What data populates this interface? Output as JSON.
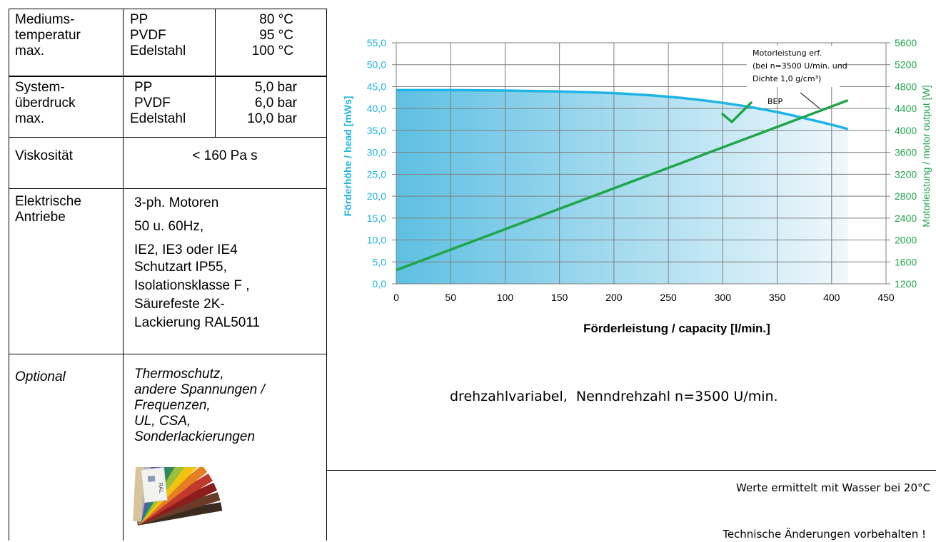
{
  "spec_table": {
    "medium_temp": {
      "label": "Mediums-\ntemperatur\nmax.",
      "rows": [
        {
          "material": "PP",
          "value": "80 °C"
        },
        {
          "material": "PVDF",
          "value": "95 °C"
        },
        {
          "material": "Edelstahl",
          "value": "100 °C"
        }
      ]
    },
    "system_pressure": {
      "label": "System-\nüberdruck\nmax.",
      "rows": [
        {
          "material": "PP",
          "value": "5,0 bar"
        },
        {
          "material": "PVDF",
          "value": "6,0 bar"
        },
        {
          "material": "Edelstahl",
          "value": "10,0 bar"
        }
      ]
    },
    "viscosity": {
      "label": "Viskosität",
      "value": "< 160 Pa s"
    },
    "drives": {
      "label": "Elektrische\nAntriebe",
      "lines": [
        "3-ph. Motoren",
        "50 u. 60Hz,",
        "IE2, IE3 oder IE4",
        "Schutzart IP55,",
        "Isolationsklasse F ,",
        "Säurefeste 2K-",
        "Lackierung RAL5011"
      ]
    },
    "optional": {
      "label": "Optional",
      "value": "Thermoschutz,\nandere Spannungen /\nFrequenzen,\nUL, CSA,\nSonderlackierungen"
    },
    "ral_fan_label": "RAL"
  },
  "chart_data": {
    "type": "line",
    "xlabel": "Förderleistung / capacity  [l/min.]",
    "ylabel_left": "Förderhöhe / head  [mWs]",
    "ylabel_right": "Motorleistung / motor output [W]",
    "xlim": [
      0,
      450
    ],
    "xticks": [
      "0",
      "50",
      "100",
      "150",
      "200",
      "250",
      "300",
      "350",
      "400",
      "450"
    ],
    "ylim_left": [
      0,
      55
    ],
    "yticks_left": [
      "0,0",
      "5,0",
      "10,0",
      "15,0",
      "20,0",
      "25,0",
      "30,0",
      "35,0",
      "40,0",
      "45,0",
      "50,0",
      "55,0"
    ],
    "ylim_right": [
      1200,
      5600
    ],
    "yticks_right": [
      "1200",
      "1600",
      "2000",
      "2400",
      "2800",
      "3200",
      "3600",
      "4000",
      "4400",
      "4800",
      "5200",
      "5600"
    ],
    "grid": true,
    "series": [
      {
        "axis": "left",
        "color": "#1eb4e6",
        "x": [
          0,
          50,
          100,
          150,
          200,
          250,
          300,
          350,
          400,
          415
        ],
        "y": [
          44.2,
          44.2,
          44.1,
          43.9,
          43.5,
          42.7,
          41.3,
          39.2,
          36.3,
          35.3
        ]
      },
      {
        "axis": "right",
        "color": "#1fa64a",
        "x": [
          0,
          415
        ],
        "y": [
          1450,
          4550
        ]
      }
    ],
    "annotations": {
      "motor_note": [
        "Motorleistung erf.",
        "(bei n=3500 U/min. und",
        "Dichte 1,0 g/cm³)"
      ],
      "bep": "BEP"
    },
    "colors": {
      "head": "#1eb4e6",
      "motor": "#1fa64a",
      "fill": "#4fb8dd"
    }
  },
  "speed_note": "drehzahlvariabel,  Nenndrehzahl n=3500 U/min.",
  "water_note": "Werte ermittelt mit Wasser bei 20°C",
  "changes_note": "Technische Änderungen vorbehalten !"
}
